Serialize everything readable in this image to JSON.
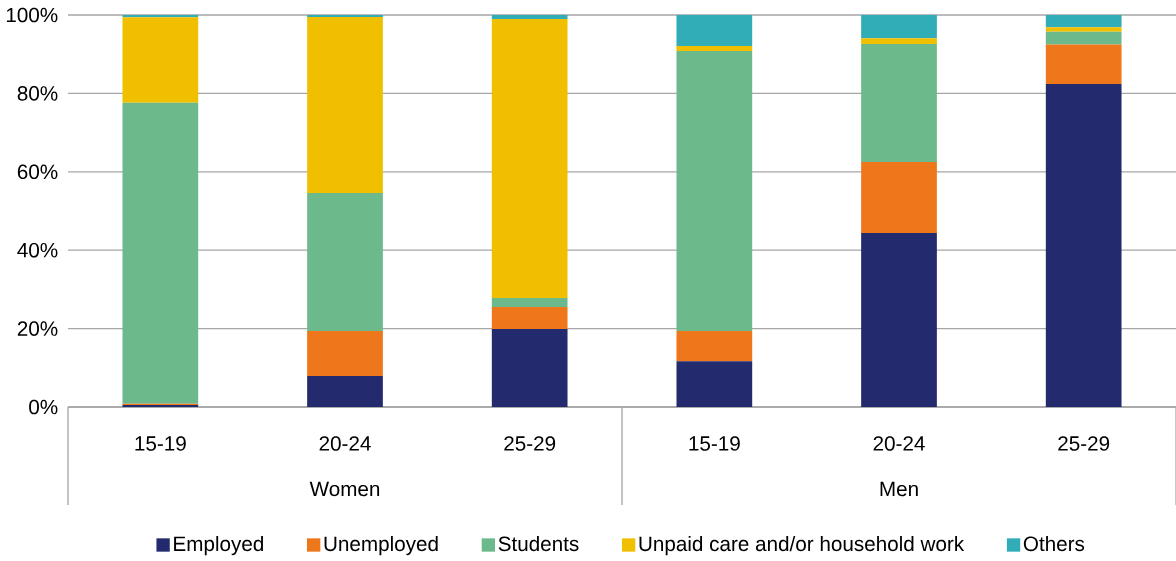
{
  "chart_data": {
    "type": "bar",
    "stacked": true,
    "categories": [
      "15-19",
      "20-24",
      "25-29",
      "15-19",
      "20-24",
      "25-29"
    ],
    "annotations": [
      "Women",
      "Men"
    ],
    "series": [
      {
        "name": "Employed",
        "color": "#232b6e",
        "values": [
          0.5,
          7.9,
          19.9,
          11.7,
          44.4,
          82.4
        ]
      },
      {
        "name": "Unemployed",
        "color": "#ee761b",
        "values": [
          0.3,
          11.5,
          5.6,
          7.7,
          18.1,
          10.1
        ]
      },
      {
        "name": "Students",
        "color": "#6cba8b",
        "values": [
          76.8,
          35.2,
          2.3,
          71.4,
          30.1,
          3.2
        ]
      },
      {
        "name": "Unpaid care and/or household work",
        "color": "#f0bf00",
        "values": [
          21.8,
          44.9,
          71.2,
          1.3,
          1.5,
          1.2
        ]
      },
      {
        "name": "Others",
        "color": "#31adb8",
        "values": [
          0.6,
          0.5,
          1.0,
          7.9,
          5.9,
          3.1
        ]
      }
    ],
    "ylim": [
      0,
      100
    ],
    "yticks": [
      {
        "value": 0,
        "label": "0%"
      },
      {
        "value": 20,
        "label": "20%"
      },
      {
        "value": 40,
        "label": "40%"
      },
      {
        "value": 60,
        "label": "60%"
      },
      {
        "value": 80,
        "label": "80%"
      },
      {
        "value": 100,
        "label": "100%"
      }
    ],
    "grid": "y",
    "legend": "bottom"
  }
}
